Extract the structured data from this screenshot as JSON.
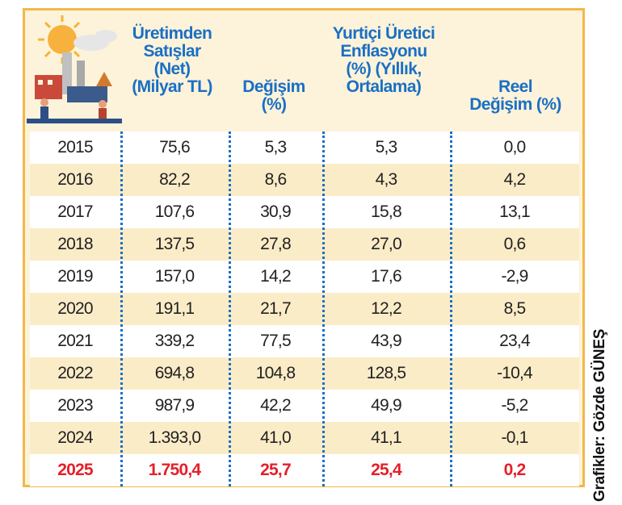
{
  "chart_data": {
    "type": "table",
    "headers": {
      "sales": [
        "Üretimden",
        "Satışlar",
        "(Net)",
        "(Milyar TL)"
      ],
      "change": [
        "Değişim",
        "(%)"
      ],
      "inflation": [
        "Yurtiçi Üretici",
        "Enflasyonu",
        "(%) (Yıllık,",
        "Ortalama)"
      ],
      "real": [
        "Reel",
        "Değişim (%)"
      ]
    },
    "rows": [
      {
        "year": "2015",
        "sales": "75,6",
        "change": "5,3",
        "inflation": "5,3",
        "real": "0,0"
      },
      {
        "year": "2016",
        "sales": "82,2",
        "change": "8,6",
        "inflation": "4,3",
        "real": "4,2"
      },
      {
        "year": "2017",
        "sales": "107,6",
        "change": "30,9",
        "inflation": "15,8",
        "real": "13,1"
      },
      {
        "year": "2018",
        "sales": "137,5",
        "change": "27,8",
        "inflation": "27,0",
        "real": "0,6"
      },
      {
        "year": "2019",
        "sales": "157,0",
        "change": "14,2",
        "inflation": "17,6",
        "real": "-2,9"
      },
      {
        "year": "2020",
        "sales": "191,1",
        "change": "21,7",
        "inflation": "12,2",
        "real": "8,5"
      },
      {
        "year": "2021",
        "sales": "339,2",
        "change": "77,5",
        "inflation": "43,9",
        "real": "23,4"
      },
      {
        "year": "2022",
        "sales": "694,8",
        "change": "104,8",
        "inflation": "128,5",
        "real": "-10,4"
      },
      {
        "year": "2023",
        "sales": "987,9",
        "change": "42,2",
        "inflation": "49,9",
        "real": "-5,2"
      },
      {
        "year": "2024",
        "sales": "1.393,0",
        "change": "41,0",
        "inflation": "41,1",
        "real": "-0,1"
      },
      {
        "year": "2025",
        "sales": "1.750,4",
        "change": "25,7",
        "inflation": "25,4",
        "real": "0,2"
      }
    ],
    "highlight_row": "2025"
  },
  "credit": "Grafikler: Gözde GÜNEŞ",
  "colors": {
    "header_text": "#1a6fc4",
    "highlight": "#e4202a",
    "border": "#f2b84a",
    "stripe": "#fbecc8"
  },
  "icons": [
    "factory-sun-illustration"
  ]
}
